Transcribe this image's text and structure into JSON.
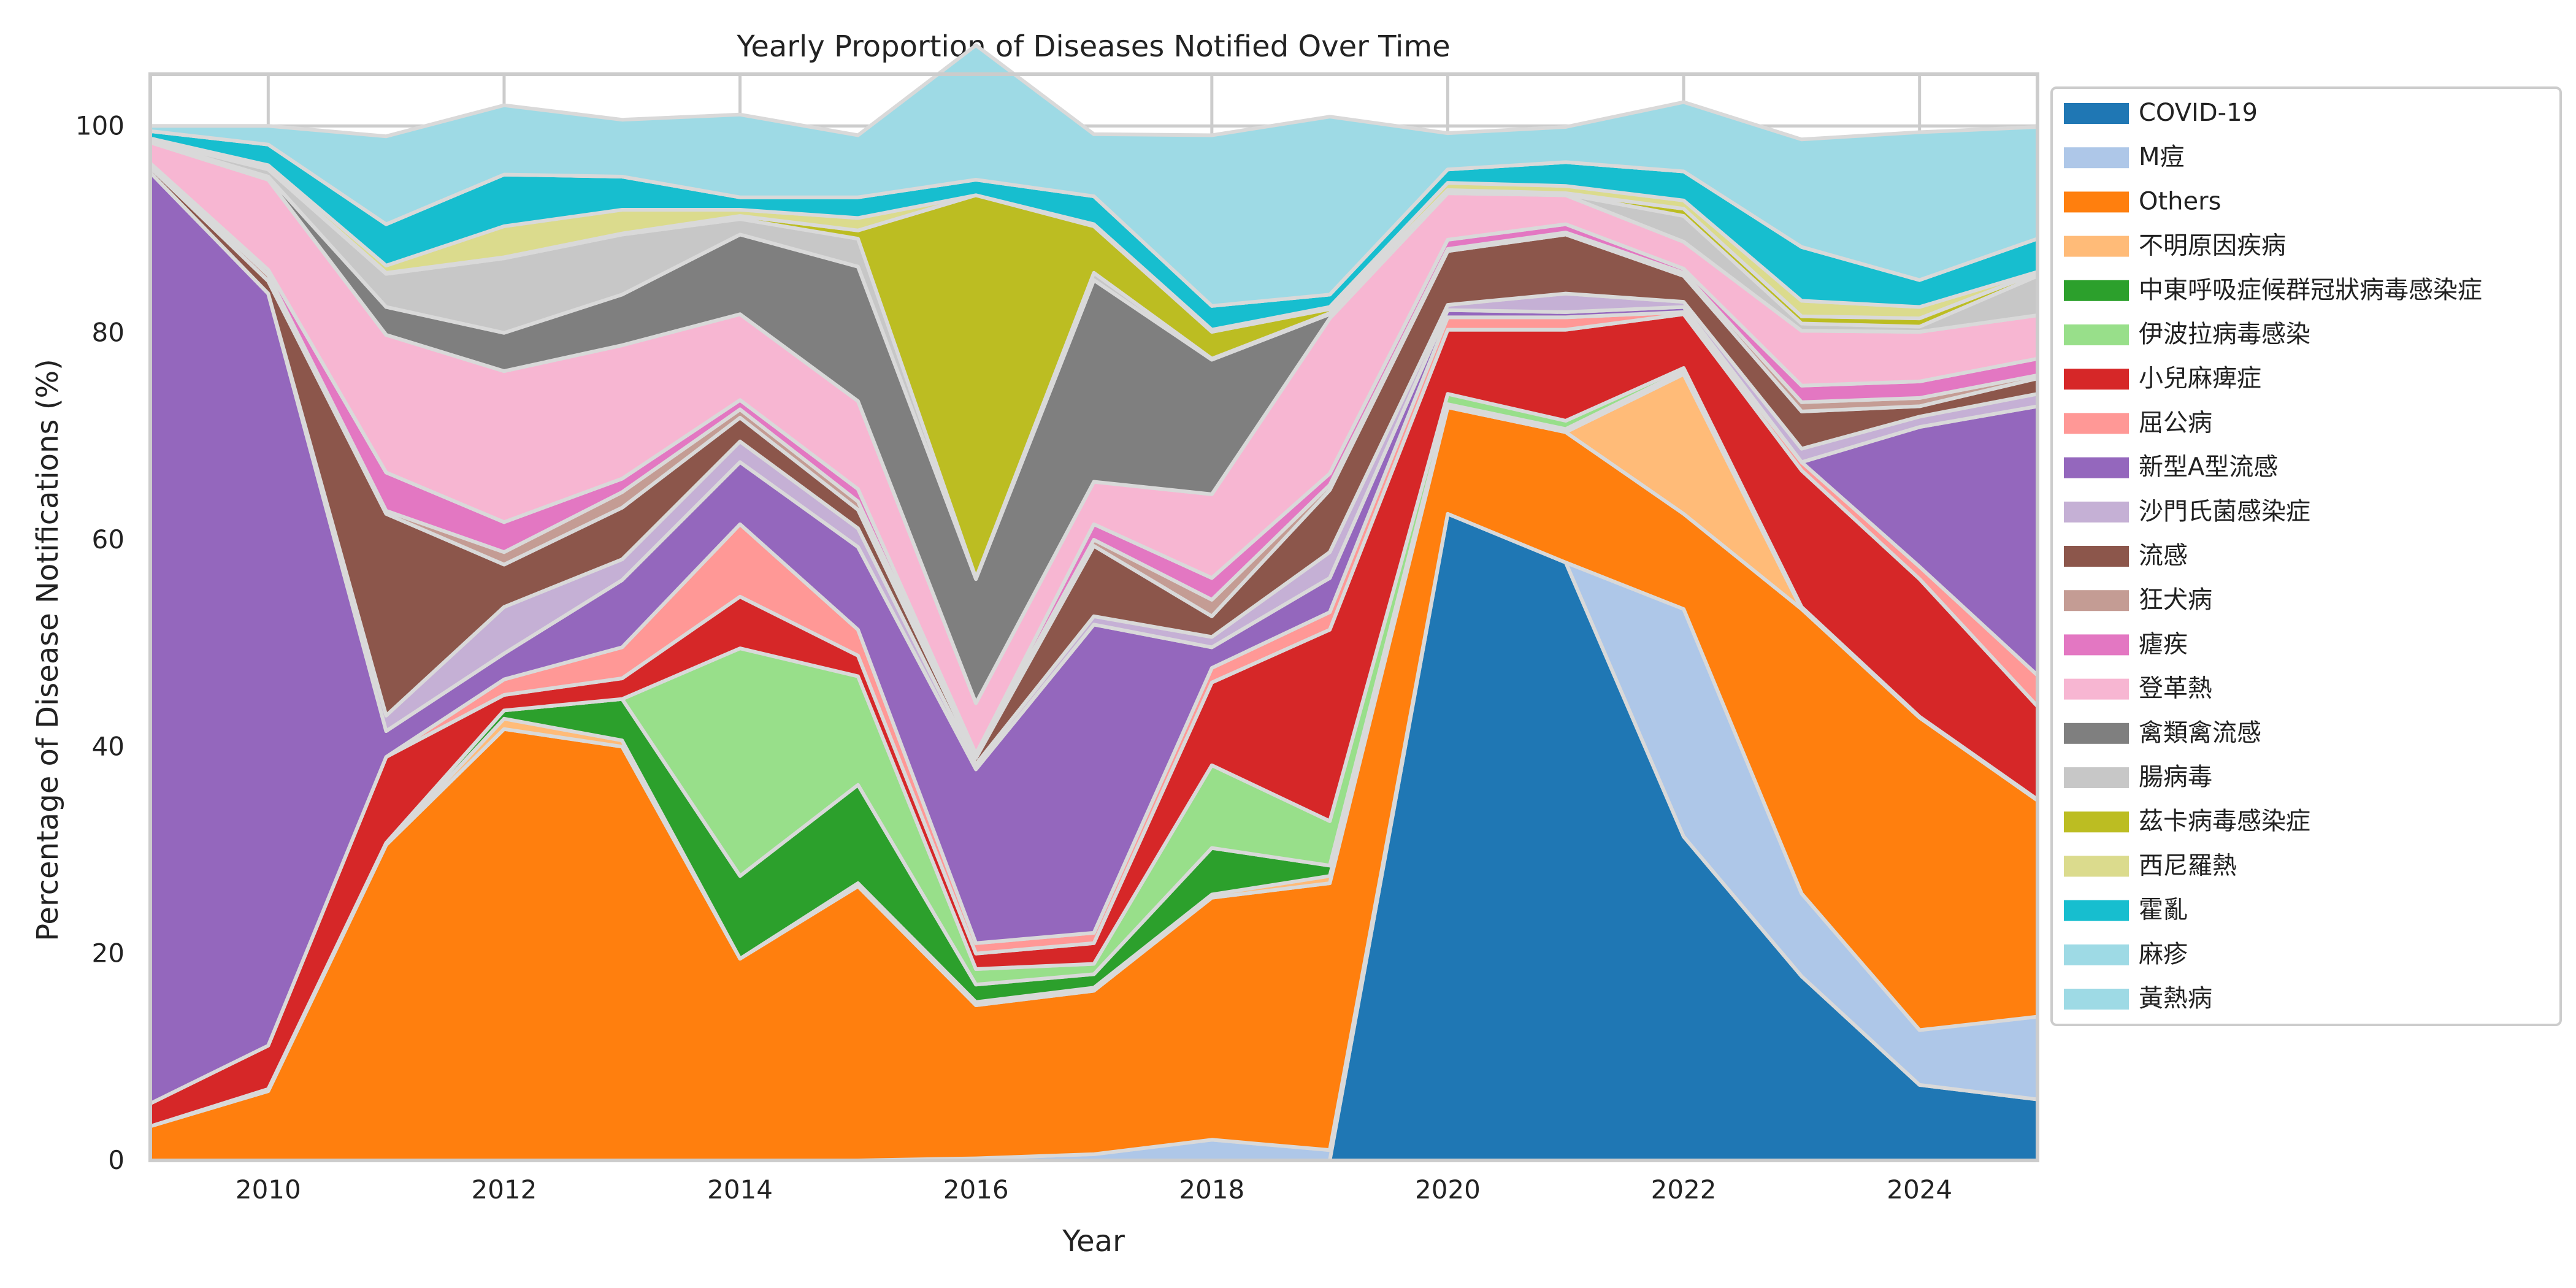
{
  "chart_data": {
    "type": "area",
    "title": "Yearly Proportion of Diseases Notified Over Time",
    "xlabel": "Year",
    "ylabel": "Percentage of Disease Notifications (%)",
    "x": [
      2009,
      2010,
      2011,
      2012,
      2013,
      2014,
      2015,
      2016,
      2017,
      2018,
      2019,
      2020,
      2021,
      2022,
      2023,
      2024,
      2025
    ],
    "xlim": [
      2009,
      2025
    ],
    "ylim": [
      0,
      105
    ],
    "xticks": [
      2010,
      2012,
      2014,
      2016,
      2018,
      2020,
      2022,
      2024
    ],
    "yticks": [
      0,
      20,
      40,
      60,
      80,
      100
    ],
    "grid": true,
    "stacked": true,
    "legend_position": "outside-right",
    "series": [
      {
        "name": "COVID-19",
        "color": "#1f77b4",
        "values": [
          0,
          0,
          0,
          0,
          0,
          0,
          0,
          0,
          0,
          0,
          0,
          62.5,
          57.8,
          31.3,
          17.8,
          7.3,
          5.9
        ]
      },
      {
        "name": "M痘",
        "color": "#aec7e8",
        "values": [
          0,
          0,
          0,
          0,
          0,
          0,
          0,
          0.2,
          0.6,
          2,
          1,
          0,
          0,
          22,
          8,
          5.3,
          8
        ]
      },
      {
        "name": "Others",
        "color": "#ff7f0e",
        "values": [
          3.3,
          6.7,
          30.5,
          41.7,
          40,
          19.5,
          26.5,
          14.8,
          15.8,
          23.4,
          25.8,
          10.3,
          12.6,
          9.2,
          27.5,
          30.2,
          20.9
        ]
      },
      {
        "name": "不明原因疾病",
        "color": "#ffbb78",
        "values": [
          0,
          0,
          0,
          1,
          0.6,
          0,
          0.3,
          0.3,
          0.3,
          0.3,
          0.7,
          0,
          0,
          13.5,
          0,
          0,
          0
        ]
      },
      {
        "name": "中東呼吸症候群冠狀病毒感染症",
        "color": "#2ca02c",
        "values": [
          0,
          0.2,
          0.2,
          0.8,
          4,
          8,
          9.5,
          1.7,
          1.3,
          4.5,
          1,
          0.3,
          0.3,
          0.3,
          0.2,
          0.1,
          0.1
        ]
      },
      {
        "name": "伊波拉病毒感染",
        "color": "#98df8a",
        "values": [
          0,
          0,
          0,
          0,
          0,
          22,
          10.5,
          1.5,
          1,
          8,
          4.3,
          1,
          0.8,
          0.3,
          0,
          0,
          0
        ]
      },
      {
        "name": "小兒麻痺症",
        "color": "#d62728",
        "values": [
          2.2,
          4.2,
          8.3,
          1.5,
          2,
          5,
          2,
          1.5,
          2,
          8,
          18.5,
          6.2,
          8.8,
          5.2,
          13.2,
          13.3,
          9
        ]
      },
      {
        "name": "屈公病",
        "color": "#ff9896",
        "values": [
          0,
          0,
          0,
          1.5,
          3,
          7,
          2.5,
          1,
          1,
          1.4,
          1.7,
          1.2,
          1.2,
          0.2,
          0.8,
          1.2,
          3
        ]
      },
      {
        "name": "新型A型流感",
        "color": "#9467bd",
        "values": [
          90,
          72.7,
          2.5,
          2.5,
          6.5,
          6,
          8,
          16.8,
          29.8,
          2,
          3.3,
          0.7,
          0.5,
          0.5,
          0,
          13.5,
          26
        ]
      },
      {
        "name": "沙門氏菌感染症",
        "color": "#c5b0d5",
        "values": [
          0,
          0,
          1.5,
          4.5,
          2,
          2,
          1.8,
          0.5,
          0.8,
          1,
          2.5,
          0.5,
          1.8,
          0.5,
          1.3,
          1,
          1.2
        ]
      },
      {
        "name": "流感",
        "color": "#8c564b",
        "values": [
          0.5,
          1.2,
          19.5,
          4.1,
          5,
          2.3,
          1.8,
          0.6,
          6.8,
          2,
          6,
          5.2,
          5.7,
          2.5,
          3.6,
          1,
          1.5
        ]
      },
      {
        "name": "狂犬病",
        "color": "#c49c94",
        "values": [
          0.2,
          0.6,
          0.3,
          1.2,
          1.5,
          0.8,
          0.8,
          0.3,
          0.6,
          1.6,
          0.5,
          0.2,
          0.2,
          0.3,
          0.9,
          0.8,
          0.3
        ]
      },
      {
        "name": "瘧疾",
        "color": "#e377c2",
        "values": [
          0.2,
          0.5,
          3.7,
          2.9,
          1.3,
          0.9,
          1.2,
          0.1,
          1.5,
          2.1,
          1.1,
          0.9,
          0.8,
          0.4,
          1.6,
          1.6,
          1.6
        ]
      },
      {
        "name": "登革熱",
        "color": "#f7b6d2",
        "values": [
          2,
          8.7,
          13.3,
          14.6,
          12.9,
          8.3,
          8.5,
          4.9,
          4.1,
          8.1,
          15,
          4.5,
          2.8,
          2.6,
          5.3,
          4.8,
          4.2
        ]
      },
      {
        "name": "禽類禽流感",
        "color": "#7f7f7f",
        "values": [
          0.1,
          0.3,
          2.7,
          3.7,
          4.9,
          7.7,
          13,
          12,
          19.5,
          13,
          0.4,
          0,
          0,
          0,
          0,
          0,
          0
        ]
      },
      {
        "name": "腸病毒",
        "color": "#c7c7c7",
        "values": [
          0.1,
          0.7,
          3.2,
          7.2,
          5.8,
          1.5,
          2.7,
          0.1,
          0.7,
          0.1,
          0.1,
          0.1,
          0.1,
          2.5,
          0.7,
          0.5,
          3.8
        ]
      },
      {
        "name": "茲卡病毒感染症",
        "color": "#bcbd22",
        "values": [
          0,
          0.1,
          0.1,
          0.1,
          0.1,
          0.3,
          0.8,
          37,
          4.5,
          2.6,
          0.4,
          0.2,
          0.1,
          0.7,
          0.7,
          0.8,
          0.3
        ]
      },
      {
        "name": "西尼羅熱",
        "color": "#dbdb8d",
        "values": [
          0.2,
          0.3,
          0.7,
          3,
          2.3,
          0.6,
          1.2,
          0,
          0.2,
          0.2,
          0.2,
          0.7,
          0.7,
          0.8,
          1.5,
          1.1,
          0.1
        ]
      },
      {
        "name": "霍亂",
        "color": "#17becf",
        "values": [
          0.7,
          2,
          4,
          5,
          3.2,
          1.2,
          2,
          1.5,
          2.7,
          2.3,
          1.2,
          1.3,
          2.3,
          2.8,
          5.2,
          2.6,
          3.2
        ]
      },
      {
        "name": "麻疹",
        "color": "#9edae5",
        "values": [
          0,
          0,
          0,
          0,
          0,
          0,
          0,
          0,
          0,
          0,
          0,
          0,
          0,
          0,
          0,
          0,
          0
        ]
      },
      {
        "name": "黃熱病",
        "color": "#9edae5",
        "values": [
          0.5,
          1.8,
          8.5,
          6.7,
          5.5,
          8,
          6,
          13,
          6,
          16.5,
          17.2,
          3.5,
          3.4,
          6.7,
          10.4,
          14.3,
          10.8
        ]
      }
    ]
  }
}
